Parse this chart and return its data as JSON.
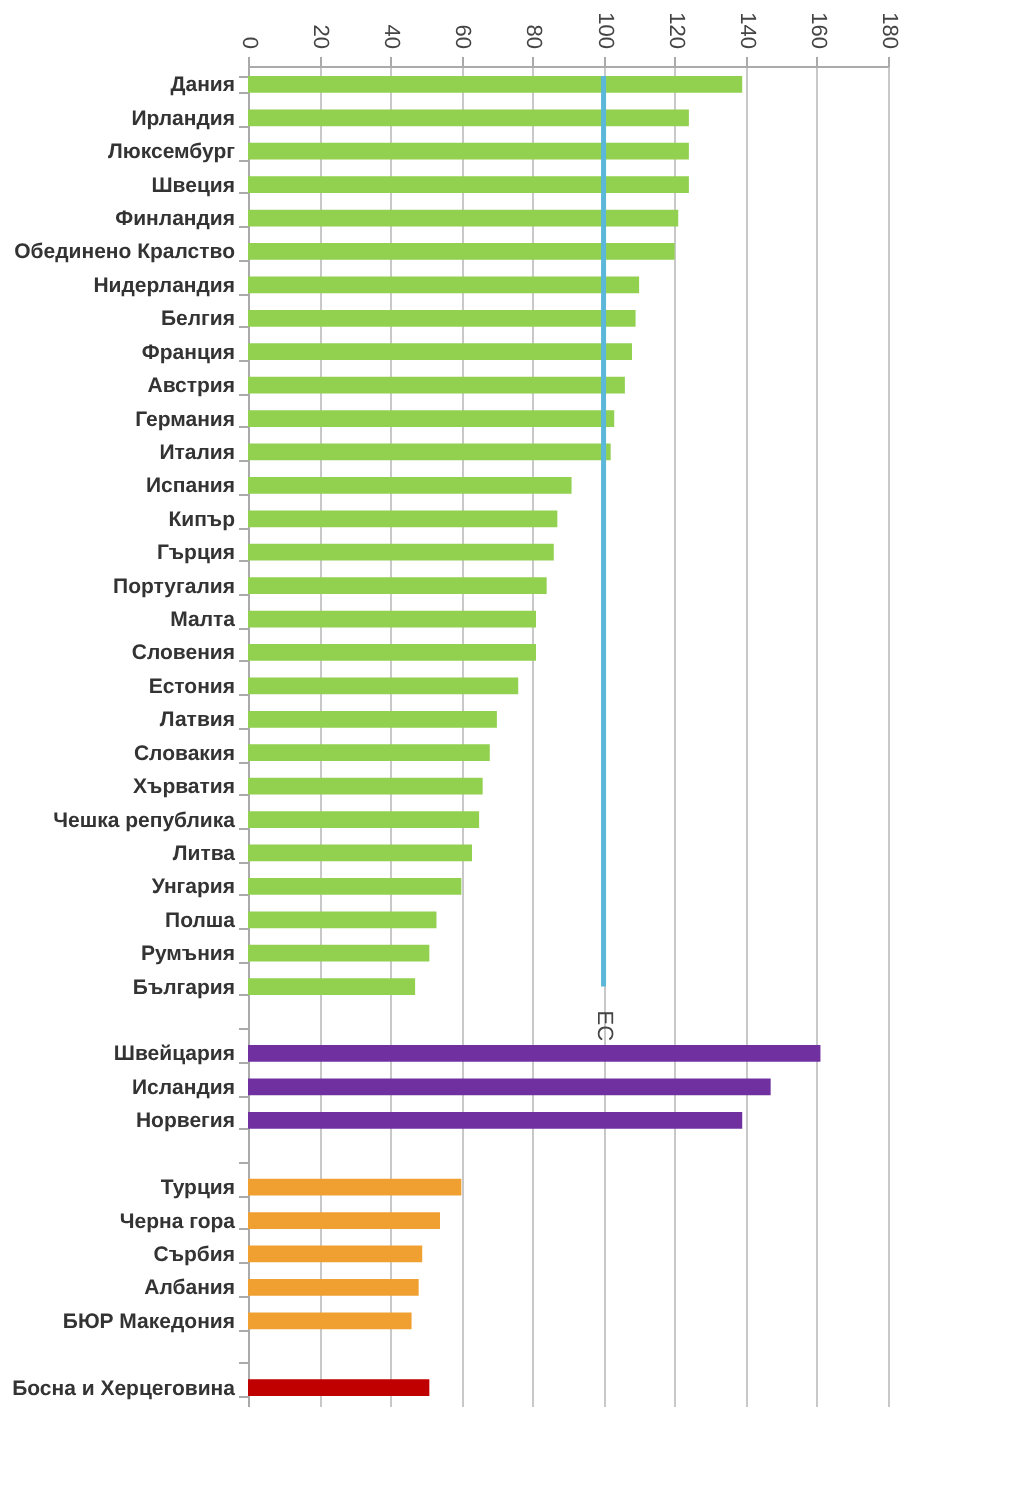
{
  "chart_data": {
    "type": "bar",
    "orientation": "horizontal",
    "categories": [
      "Дания",
      "Ирландия",
      "Люксембург",
      "Швеция",
      "Финландия",
      "Обединено Кралство",
      "Нидерландия",
      "Белгия",
      "Франция",
      "Австрия",
      "Германия",
      "Италия",
      "Испания",
      "Кипър",
      "Гърция",
      "Португалия",
      "Малта",
      "Словения",
      "Естония",
      "Латвия",
      "Словакия",
      "Хърватия",
      "Чешка република",
      "Литва",
      "Унгария",
      "Полша",
      "Румъния",
      "България",
      null,
      "Швейцария",
      "Исландия",
      "Норвегия",
      null,
      "Турция",
      "Черна гора",
      "Сърбия",
      "Албания",
      "БЮР Македония",
      null,
      "Босна и Херцеговина"
    ],
    "values": [
      139,
      124,
      124,
      124,
      121,
      120,
      110,
      109,
      108,
      106,
      103,
      102,
      91,
      87,
      86,
      84,
      81,
      81,
      76,
      70,
      68,
      66,
      65,
      63,
      60,
      53,
      51,
      47,
      null,
      161,
      147,
      139,
      null,
      60,
      54,
      49,
      48,
      46,
      null,
      51
    ],
    "colors": [
      "#92d050",
      "#92d050",
      "#92d050",
      "#92d050",
      "#92d050",
      "#92d050",
      "#92d050",
      "#92d050",
      "#92d050",
      "#92d050",
      "#92d050",
      "#92d050",
      "#92d050",
      "#92d050",
      "#92d050",
      "#92d050",
      "#92d050",
      "#92d050",
      "#92d050",
      "#92d050",
      "#92d050",
      "#92d050",
      "#92d050",
      "#92d050",
      "#92d050",
      "#92d050",
      "#92d050",
      "#92d050",
      null,
      "#7030a0",
      "#7030a0",
      "#7030a0",
      null,
      "#f0a030",
      "#f0a030",
      "#f0a030",
      "#f0a030",
      "#f0a030",
      null,
      "#c00000"
    ],
    "xlim": [
      0,
      180
    ],
    "xticks": [
      0,
      20,
      40,
      60,
      80,
      100,
      120,
      140,
      160,
      180
    ],
    "grid": true,
    "ref_lines": [
      {
        "axis": "x",
        "value": 100,
        "label": "ЕС",
        "color": "#5bb8d8"
      }
    ]
  }
}
